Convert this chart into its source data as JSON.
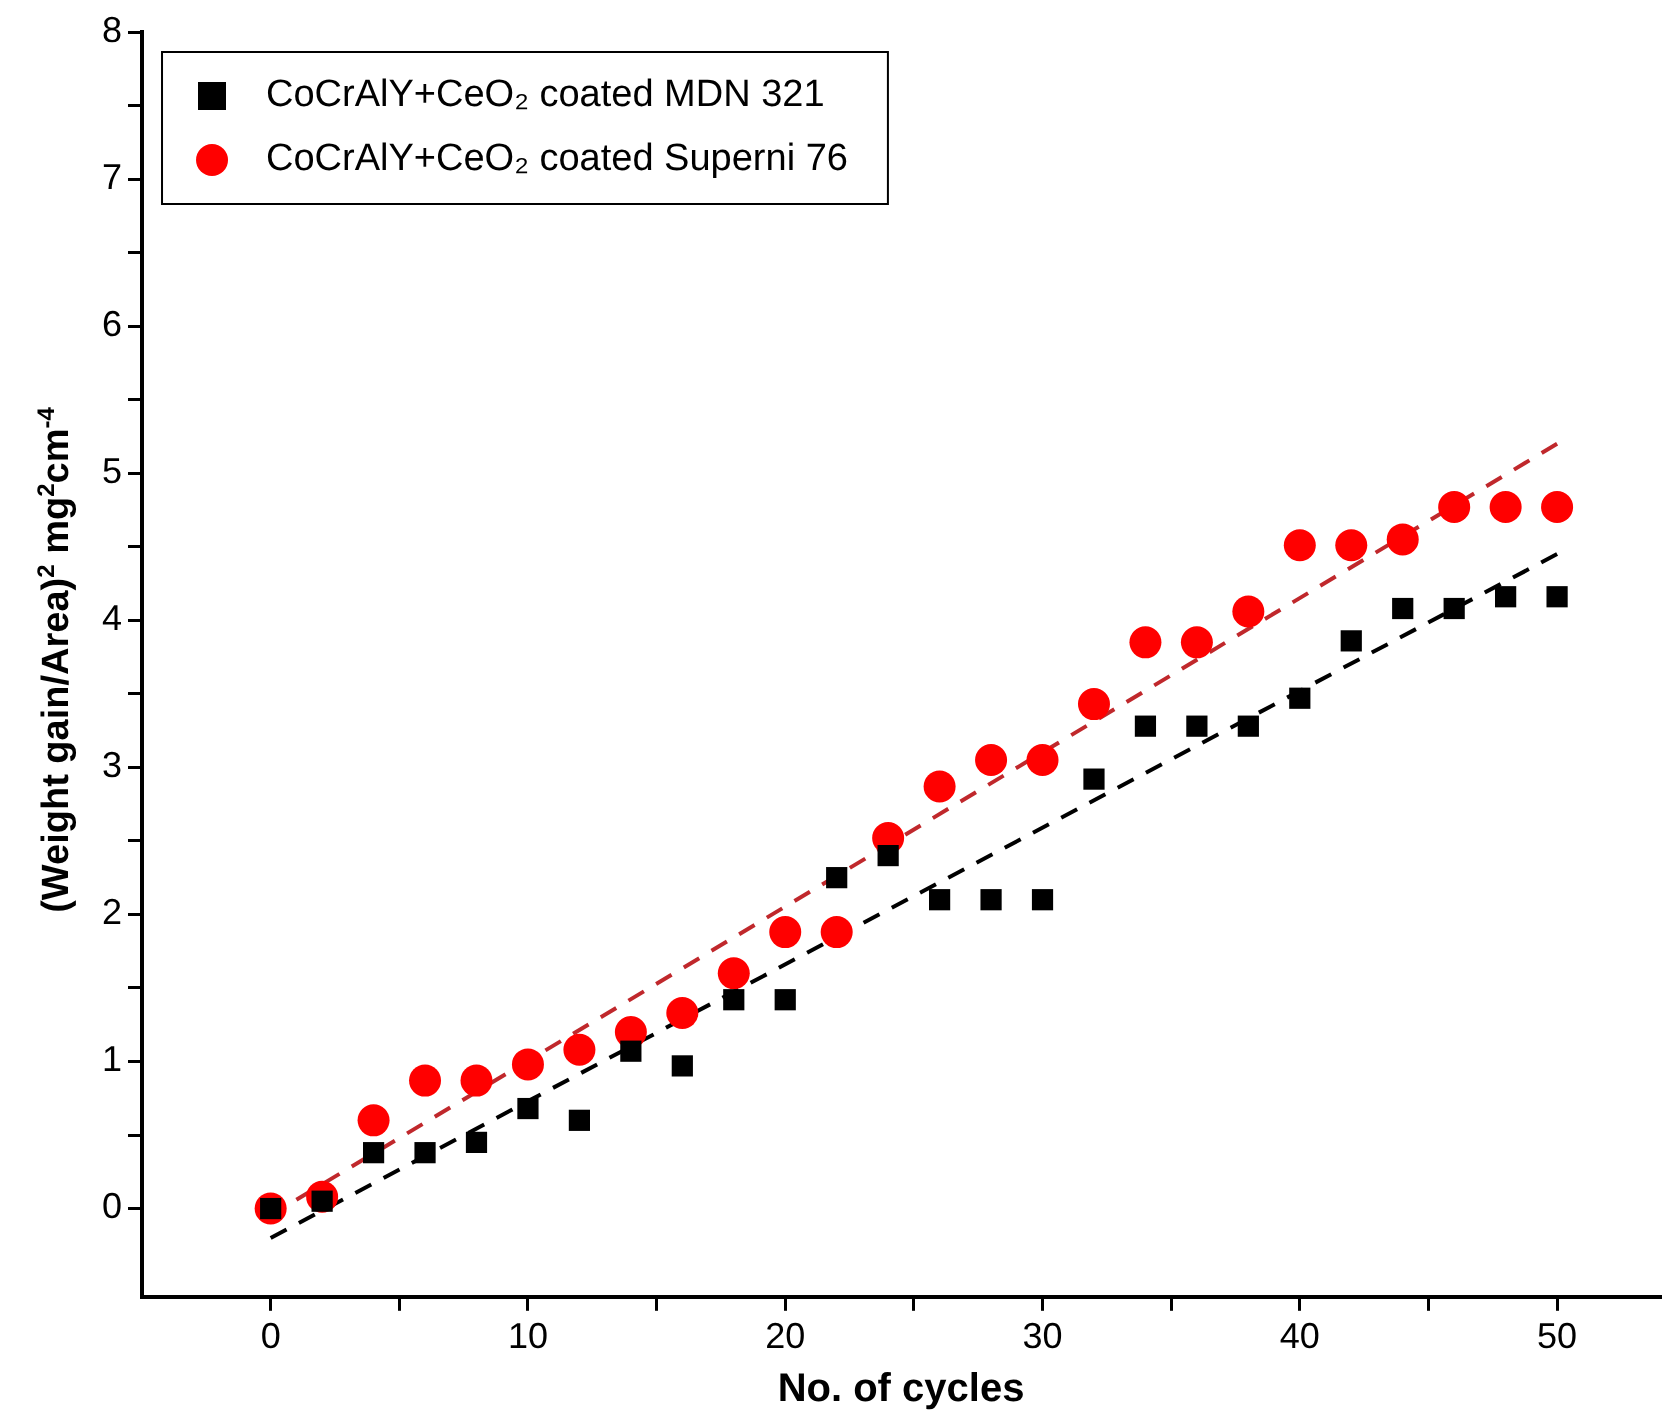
{
  "chart_data": {
    "type": "scatter",
    "xlabel": "No. of cycles",
    "ylabel": "(Weight gain/Area)$^{2}$  mg$^{2}$cm$^{-4}$",
    "x": [
      0,
      2,
      4,
      6,
      8,
      10,
      12,
      14,
      16,
      18,
      20,
      22,
      24,
      26,
      28,
      30,
      32,
      34,
      36,
      38,
      40,
      42,
      44,
      46,
      48,
      50
    ],
    "series": [
      {
        "name": "CoCrAlY+CeO₂ coated MDN 321",
        "color": "#000000",
        "marker": "square",
        "values": [
          0,
          0.05,
          0.38,
          0.38,
          0.45,
          0.68,
          0.6,
          1.07,
          0.97,
          1.42,
          1.42,
          2.25,
          2.4,
          2.1,
          2.1,
          2.1,
          2.92,
          3.28,
          3.28,
          3.28,
          3.47,
          3.86,
          4.08,
          4.08,
          4.16,
          4.16
        ]
      },
      {
        "name": "CoCrAlY+CeO₂ coated Superni 76",
        "color": "#ff0000",
        "marker": "circle",
        "values": [
          0,
          0.08,
          0.6,
          0.87,
          0.87,
          0.98,
          1.08,
          1.2,
          1.33,
          1.6,
          1.88,
          1.88,
          2.52,
          2.87,
          3.05,
          3.05,
          3.43,
          3.85,
          3.85,
          4.06,
          4.51,
          4.51,
          4.55,
          4.77,
          4.77,
          4.77
        ]
      },
      {
        "type": "line",
        "color": "#000000",
        "marker": "none",
        "line_style": "dashed",
        "x": [
          0,
          50
        ],
        "values": [
          -0.2,
          4.45
        ]
      },
      {
        "type": "line",
        "color": "#c0282c",
        "marker": "none",
        "line_style": "dashed",
        "x": [
          1,
          50
        ],
        "values": [
          0.06,
          5.2
        ]
      }
    ],
    "legend": "top left",
    "xlim": [
      -5,
      54
    ],
    "xticks": [
      0,
      {
        "value": 5,
        "label": null
      },
      10,
      {
        "value": 15,
        "label": null
      },
      20,
      {
        "value": 25,
        "label": null
      },
      30,
      {
        "value": 35,
        "label": null
      },
      40,
      {
        "value": 45,
        "label": null
      },
      50
    ],
    "ylim": [
      -0.6,
      8
    ],
    "yticks": [
      0,
      {
        "value": 0.5,
        "label": null
      },
      1,
      {
        "value": 1.5,
        "label": null
      },
      2,
      {
        "value": 2.5,
        "label": null
      },
      3,
      {
        "value": 3.5,
        "label": null
      },
      4,
      {
        "value": 4.5,
        "label": null
      },
      5,
      {
        "value": 5.5,
        "label": null
      },
      6,
      {
        "value": 6.5,
        "label": null
      },
      7,
      {
        "value": 7.5,
        "label": null
      },
      8
    ]
  }
}
